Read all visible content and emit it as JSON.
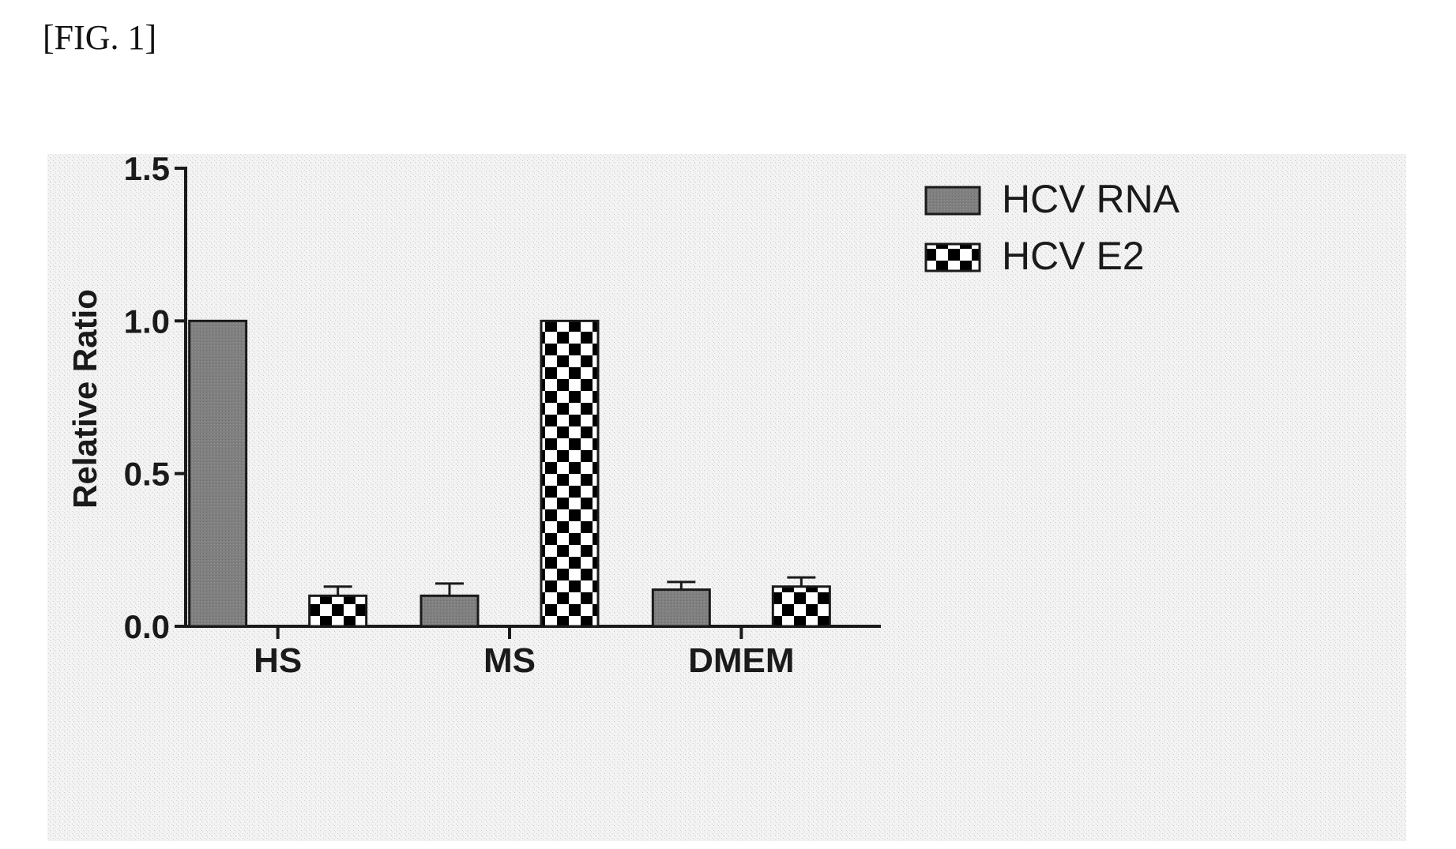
{
  "figure_label": "[FIG. 1]",
  "chart_data": {
    "type": "bar",
    "title": "",
    "xlabel": "",
    "ylabel": "Relative Ratio",
    "ylim": [
      0,
      1.5
    ],
    "yticks": [
      "0.0",
      "0.5",
      "1.0",
      "1.5"
    ],
    "categories": [
      "HS",
      "MS",
      "DMEM"
    ],
    "legend_position": "top-right",
    "series": [
      {
        "name": "HCV RNA",
        "pattern": "solid-gray",
        "color": "#7d7d7d",
        "values": [
          1.0,
          0.1,
          0.12
        ],
        "errors": [
          0,
          0.04,
          0.025
        ]
      },
      {
        "name": "HCV E2",
        "pattern": "checkerboard",
        "color": "#000000",
        "values": [
          0.1,
          1.0,
          0.13
        ],
        "errors": [
          0.03,
          0,
          0.03
        ]
      }
    ]
  }
}
